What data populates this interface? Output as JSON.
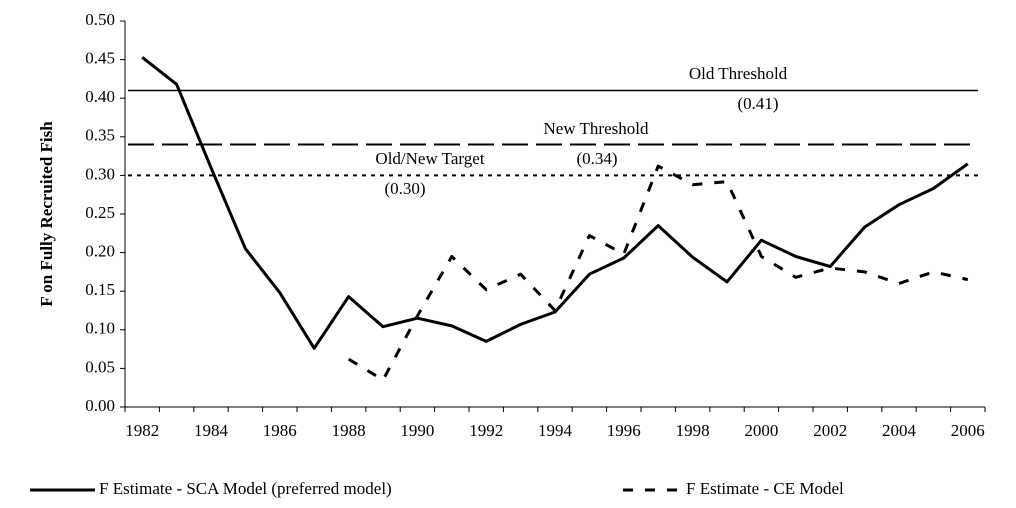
{
  "chart_data": {
    "type": "line",
    "y_label": "F on Fully Recruited Fish",
    "categories": [
      "1982",
      null,
      "1984",
      null,
      "1986",
      null,
      "1988",
      null,
      "1990",
      null,
      "1992",
      null,
      "1994",
      null,
      "1996",
      null,
      "1998",
      null,
      "2000",
      null,
      "2002",
      null,
      "2004",
      null,
      "2006"
    ],
    "series": [
      {
        "name": "F Estimate - SCA Model (preferred model)",
        "color": "#000000",
        "style": "solid",
        "values": [
          0.453,
          0.418,
          0.31,
          0.205,
          0.148,
          0.076,
          0.143,
          0.104,
          0.115,
          0.105,
          0.085,
          0.107,
          0.123,
          0.172,
          0.193,
          0.235,
          0.194,
          0.162,
          0.216,
          0.195,
          0.182,
          0.233,
          0.262,
          0.283,
          0.315
        ]
      },
      {
        "name": "F Estimate - CE Model",
        "color": "#000000",
        "style": "dashed",
        "values": [
          null,
          null,
          null,
          null,
          null,
          null,
          0.062,
          0.035,
          0.118,
          0.195,
          0.152,
          0.172,
          0.125,
          0.222,
          0.198,
          0.312,
          0.288,
          0.292,
          0.195,
          0.168,
          0.18,
          0.175,
          0.16,
          0.175,
          0.165
        ]
      }
    ],
    "reference_lines": [
      {
        "name": "Old Threshold",
        "value": 0.41,
        "value_label": "(0.41)",
        "style": "solid"
      },
      {
        "name": "New Threshold",
        "value": 0.34,
        "value_label": "(0.34)",
        "style": "longdash"
      },
      {
        "name": "Old/New Target",
        "value": 0.3,
        "value_label": "(0.30)",
        "style": "dotted"
      }
    ],
    "ylim": [
      0,
      0.5
    ],
    "yticks": [
      {
        "value": 0,
        "label": "0.00"
      },
      {
        "value": 0.05,
        "label": "0.05"
      },
      {
        "value": 0.1,
        "label": "0.10"
      },
      {
        "value": 0.15,
        "label": "0.15"
      },
      {
        "value": 0.2,
        "label": "0.20"
      },
      {
        "value": 0.25,
        "label": "0.25"
      },
      {
        "value": 0.3,
        "label": "0.30"
      },
      {
        "value": 0.35,
        "label": "0.35"
      },
      {
        "value": 0.4,
        "label": "0.40"
      },
      {
        "value": 0.45,
        "label": "0.45"
      },
      {
        "value": 0.5,
        "label": "0.50"
      }
    ],
    "grid": false,
    "legend": "bottom"
  }
}
